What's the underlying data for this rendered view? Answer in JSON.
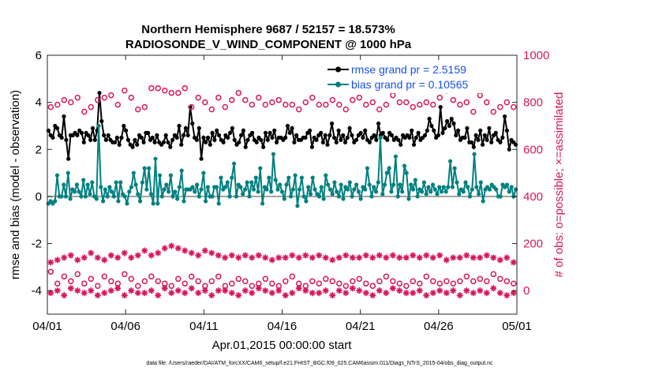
{
  "chart_data": {
    "type": "line",
    "title": "Northern Hemisphere 9687 / 52157 = 18.573%",
    "subtitle": "RADIOSONDE_V_WIND_COMPONENT @ 1000 hPa",
    "xlabel": "Apr.01,2015 00:00:00 start",
    "ylabel": "rmse and bias (model - observation)",
    "ylabel_right": "# of obs: o=possible; ×=assimilated",
    "footnote": "data file: /Users/raeder/DAI/ATM_forcXX/CAM6_setup/f.e21.FHIST_BGC.f09_025.CAM6assim.011/Diags_NTrS_2015-04/obs_diag_output.nc",
    "x_tick_labels": [
      "04/01",
      "04/06",
      "04/11",
      "04/16",
      "04/21",
      "04/26",
      "05/01"
    ],
    "xlim": [
      0,
      30
    ],
    "ylim": [
      -5,
      6
    ],
    "y_ticks": [
      -4,
      -2,
      0,
      2,
      4,
      6
    ],
    "ylim_right": [
      -100,
      1000
    ],
    "y_ticks_right": [
      0,
      200,
      400,
      600,
      800,
      1000
    ],
    "legend": {
      "position": "top-right",
      "entries": [
        "rmse grand pr = 2.5159",
        "bias grand pr = 0.10565"
      ]
    },
    "colors": {
      "rmse": "#000000",
      "bias": "#008080",
      "obs_count": "#D6175C",
      "legend_text": "#1652E8",
      "zero_line": "#a0a0a0"
    },
    "series": [
      {
        "name": "rmse",
        "axis": "left",
        "marker": "dot",
        "values": [
          2.8,
          2.6,
          2.5,
          3.0,
          2.9,
          2.6,
          2.5,
          3.4,
          2.4,
          1.6,
          2.6,
          2.6,
          2.7,
          2.6,
          2.8,
          2.7,
          2.3,
          2.7,
          2.6,
          2.4,
          2.9,
          2.4,
          2.8,
          4.4,
          3.2,
          2.6,
          2.4,
          2.6,
          2.4,
          2.3,
          2.3,
          2.5,
          2.2,
          2.5,
          3.0,
          2.8,
          2.4,
          2.2,
          2.1,
          2.4,
          2.2,
          2.6,
          2.5,
          2.3,
          2.7,
          2.7,
          2.4,
          2.5,
          2.3,
          2.6,
          2.3,
          2.2,
          2.3,
          2.6,
          2.3,
          2.1,
          2.4,
          2.6,
          2.5,
          3.0,
          2.2,
          2.6,
          2.9,
          2.6,
          3.8,
          3.1,
          2.5,
          2.4,
          2.9,
          1.6,
          2.5,
          2.3,
          2.5,
          2.2,
          2.7,
          2.4,
          2.8,
          2.6,
          2.4,
          2.3,
          2.6,
          2.5,
          2.7,
          2.9,
          2.4,
          2.2,
          2.3,
          2.6,
          2.8,
          2.1,
          2.4,
          2.6,
          2.7,
          2.4,
          2.3,
          2.5,
          2.4,
          2.1,
          2.7,
          2.4,
          2.7,
          2.5,
          2.8,
          2.3,
          2.5,
          2.5,
          2.4,
          2.5,
          3.0,
          2.7,
          2.9,
          2.3,
          2.6,
          2.4,
          2.4,
          2.5,
          2.5,
          2.7,
          2.8,
          2.1,
          2.5,
          2.4,
          2.6,
          2.7,
          2.3,
          2.6,
          2.2,
          2.6,
          3.1,
          2.5,
          2.3,
          2.8,
          2.4,
          2.6,
          2.3,
          2.5,
          2.9,
          2.6,
          2.3,
          2.4,
          2.6,
          2.7,
          2.5,
          2.8,
          2.4,
          2.3,
          2.5,
          2.6,
          2.4,
          3.1,
          2.6,
          2.7,
          2.5,
          2.4,
          2.7,
          2.6,
          2.4,
          2.5,
          2.4,
          2.2,
          2.6,
          2.5,
          2.6,
          2.5,
          2.8,
          2.2,
          2.5,
          2.7,
          2.4,
          2.5,
          2.6,
          2.8,
          3.3,
          3.0,
          2.8,
          2.5,
          2.6,
          3.8,
          2.7,
          2.9,
          3.2,
          3.0,
          3.3,
          3.1,
          2.6,
          2.8,
          2.4,
          2.5,
          2.5,
          2.9,
          2.3,
          2.3,
          2.1,
          2.6,
          2.4,
          2.8,
          2.2,
          2.6,
          2.4,
          2.9,
          2.3,
          2.6,
          2.7,
          2.4,
          2.3,
          2.5,
          3.4,
          2.8,
          2.0,
          2.4,
          2.3,
          2.2
        ]
      },
      {
        "name": "bias",
        "axis": "left",
        "marker": "dot",
        "values": [
          -0.3,
          -0.2,
          -0.3,
          -0.2,
          0.9,
          0.0,
          0.0,
          0.5,
          0.0,
          1.0,
          -0.1,
          0.3,
          0.2,
          0.5,
          0.2,
          0.0,
          0.7,
          0.0,
          0.5,
          0.1,
          0.6,
          0.0,
          -0.1,
          3.0,
          0.4,
          -0.2,
          0.3,
          0.0,
          0.4,
          0.2,
          0.0,
          0.6,
          -0.2,
          0.6,
          0.1,
          0.0,
          -0.3,
          0.2,
          0.4,
          1.0,
          0.5,
          0.1,
          -0.2,
          0.6,
          1.2,
          0.3,
          1.2,
          0.1,
          -0.3,
          1.6,
          -0.3,
          0.9,
          0.0,
          0.3,
          0.5,
          0.2,
          0.9,
          0.0,
          0.2,
          -0.1,
          0.4,
          1.1,
          -0.2,
          0.3,
          0.3,
          0.3,
          0.4,
          0.2,
          0.5,
          0.0,
          0.3,
          1.0,
          -0.2,
          0.4,
          0.0,
          0.0,
          0.4,
          0.4,
          -0.3,
          0.8,
          0.3,
          0.4,
          0.6,
          0.0,
          0.8,
          1.4,
          0.0,
          0.5,
          0.4,
          0.1,
          0.3,
          0.6,
          0.0,
          0.6,
          0.3,
          0.8,
          0.2,
          1.2,
          -0.3,
          0.4,
          0.3,
          0.8,
          0.2,
          1.8,
          0.7,
          0.3,
          0.5,
          0.2,
          -0.1,
          0.5,
          0.8,
          0.0,
          0.3,
          0.9,
          -0.4,
          0.3,
          0.8,
          0.0,
          -0.2,
          0.4,
          0.1,
          0.8,
          0.3,
          0.1,
          0.0,
          0.4,
          -0.1,
          0.9,
          0.5,
          0.3,
          0.1,
          0.6,
          0.2,
          0.0,
          0.5,
          -0.1,
          0.4,
          0.3,
          0.6,
          0.0,
          0.3,
          0.5,
          0.2,
          -0.1,
          0.4,
          0.3,
          1.2,
          0.5,
          0.0,
          0.4,
          0.2,
          0.6,
          2.5,
          0.1,
          0.5,
          1.0,
          1.2,
          0.2,
          0.5,
          1.7,
          0.0,
          0.5,
          0.2,
          1.3,
          1.0,
          -0.1,
          0.5,
          0.3,
          0.7,
          0.0,
          0.3,
          0.2,
          0.6,
          0.1,
          0.4,
          0.2,
          0.5,
          0.3,
          0.1,
          0.4,
          0.2,
          0.4,
          0.2,
          0.4,
          1.5,
          0.4,
          1.2,
          0.6,
          0.1,
          0.3,
          0.2,
          0.6,
          0.4,
          0.0,
          0.3,
          1.8,
          0.4,
          0.1,
          0.6,
          -0.2,
          0.3,
          0.4,
          0.3,
          0.5,
          0.4,
          0.3,
          0.0,
          0.0,
          0.5,
          0.4,
          0.5,
          0.2,
          0.4,
          0.0,
          0.3
        ]
      },
      {
        "name": "possible-upper",
        "axis": "right",
        "marker": "circle",
        "values": [
          780,
          790,
          810,
          800,
          820,
          760,
          780,
          810,
          820,
          830,
          790,
          850,
          820,
          770,
          780,
          860,
          860,
          850,
          840,
          840,
          860,
          780,
          820,
          800,
          770,
          820,
          780,
          810,
          840,
          810,
          790,
          820,
          790,
          800,
          810,
          790,
          790,
          770,
          800,
          820,
          790,
          790,
          810,
          790,
          770,
          810,
          820,
          790,
          800,
          770,
          790,
          830,
          800,
          800,
          780,
          790,
          800,
          790,
          820,
          850,
          810,
          790,
          800,
          760,
          830,
          800,
          760,
          780,
          800,
          780
        ]
      },
      {
        "name": "possible-lower",
        "axis": "right",
        "marker": "circle",
        "values": [
          80,
          30,
          60,
          40,
          70,
          30,
          50,
          20,
          60,
          40,
          30,
          70,
          50,
          20,
          40,
          60,
          40,
          30,
          20,
          50,
          30,
          60,
          40,
          20,
          40,
          60,
          20,
          30,
          50,
          40,
          20,
          30,
          50,
          30,
          20,
          40,
          60,
          30,
          20,
          40,
          30,
          50,
          40,
          30,
          20,
          40,
          50,
          30,
          20,
          40,
          60,
          40,
          30,
          20,
          40,
          30,
          60,
          40,
          30,
          40,
          30,
          40,
          60,
          40,
          50,
          40,
          70,
          50,
          40,
          30
        ]
      },
      {
        "name": "assimilated-upper",
        "axis": "right",
        "marker": "asterisk",
        "values": [
          120,
          130,
          140,
          150,
          130,
          140,
          160,
          140,
          130,
          150,
          140,
          160,
          140,
          150,
          170,
          150,
          160,
          180,
          190,
          180,
          170,
          160,
          150,
          170,
          160,
          150,
          140,
          150,
          140,
          150,
          140,
          150,
          140,
          130,
          140,
          140,
          150,
          140,
          150,
          140,
          150,
          140,
          130,
          140,
          150,
          140,
          140,
          150,
          140,
          150,
          140,
          150,
          140,
          140,
          150,
          140,
          150,
          140,
          150,
          130,
          140,
          140,
          150,
          140,
          140,
          150,
          140,
          130,
          140,
          120
        ]
      },
      {
        "name": "assimilated-lower",
        "axis": "right",
        "marker": "asterisk",
        "values": [
          -10,
          0,
          -20,
          10,
          0,
          -10,
          0,
          -20,
          -10,
          0,
          10,
          -20,
          0,
          -10,
          -10,
          0,
          -20,
          10,
          -10,
          0,
          -10,
          10,
          -10,
          0,
          -20,
          0,
          0,
          -10,
          -20,
          0,
          -10,
          10,
          0,
          -10,
          0,
          -20,
          -10,
          10,
          0,
          -10,
          -10,
          0,
          -20,
          0,
          -10,
          10,
          0,
          -10,
          -20,
          0,
          -10,
          10,
          0,
          -10,
          -10,
          0,
          -20,
          -10,
          0,
          -10,
          0,
          -20,
          0,
          -10,
          0,
          -10,
          10,
          -10,
          -20,
          -10
        ]
      }
    ]
  }
}
